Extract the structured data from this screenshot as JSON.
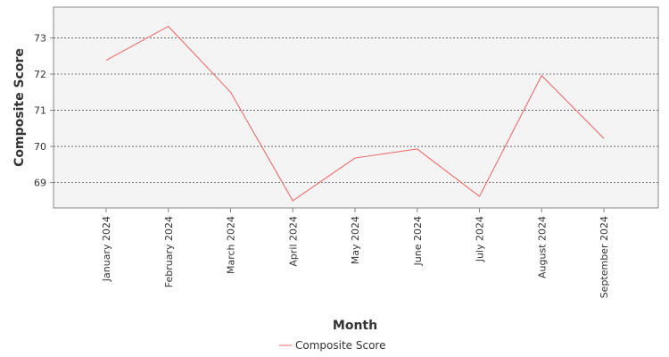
{
  "chart_data": {
    "type": "line",
    "xlabel": "Month",
    "ylabel": "Composite Score",
    "categories": [
      "January 2024",
      "February 2024",
      "March 2024",
      "April 2024",
      "May 2024",
      "June 2024",
      "July 2024",
      "August 2024",
      "September 2024"
    ],
    "series": [
      {
        "name": "Composite Score",
        "color": "#f06060",
        "values": [
          72.38,
          73.32,
          71.5,
          68.5,
          69.68,
          69.93,
          68.62,
          71.96,
          70.22
        ]
      }
    ],
    "yticks": [
      69,
      70,
      71,
      72,
      73
    ],
    "ylim": [
      68.3,
      73.85
    ],
    "grid": "horizontal dotted",
    "legend": "bottom-center"
  },
  "colors": {
    "plot_background": "#f4f4f4",
    "grid": "#555555",
    "line": "#f06060"
  }
}
